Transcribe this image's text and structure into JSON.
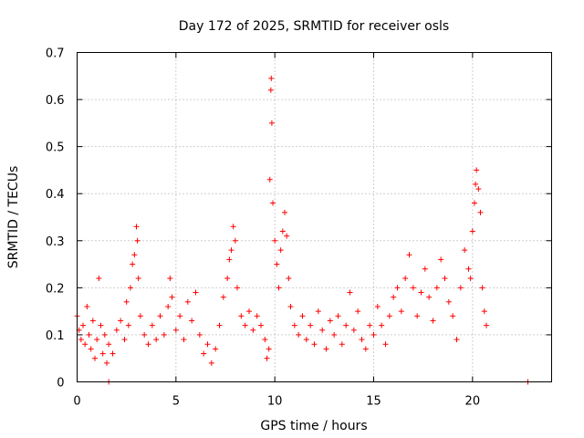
{
  "chart_data": {
    "type": "scatter",
    "title": "Day 172 of 2025, SRMTID for receiver osls",
    "xlabel": "GPS time / hours",
    "ylabel": "SRMTID / TECUs",
    "xlim": [
      0,
      24
    ],
    "ylim": [
      0,
      0.7
    ],
    "xticks": [
      0,
      5,
      10,
      15,
      20
    ],
    "xtick_labels": [
      "0",
      "5",
      "10",
      "15",
      "20"
    ],
    "yticks": [
      0,
      0.1,
      0.2,
      0.3,
      0.4,
      0.5,
      0.6,
      0.7
    ],
    "ytick_labels": [
      "0",
      "0.1",
      "0.2",
      "0.3",
      "0.4",
      "0.5",
      "0.6",
      "0.7"
    ],
    "grid": true,
    "marker": "+",
    "color": "#ff0000",
    "series": [
      {
        "name": "SRMTID osls",
        "points": [
          [
            0.0,
            0.14
          ],
          [
            0.1,
            0.11
          ],
          [
            0.2,
            0.09
          ],
          [
            0.3,
            0.12
          ],
          [
            0.4,
            0.08
          ],
          [
            0.5,
            0.16
          ],
          [
            0.6,
            0.1
          ],
          [
            0.7,
            0.07
          ],
          [
            0.8,
            0.13
          ],
          [
            0.9,
            0.05
          ],
          [
            1.0,
            0.09
          ],
          [
            1.1,
            0.22
          ],
          [
            1.2,
            0.12
          ],
          [
            1.3,
            0.06
          ],
          [
            1.4,
            0.1
          ],
          [
            1.5,
            0.04
          ],
          [
            1.6,
            0.08
          ],
          [
            1.8,
            0.06
          ],
          [
            2.0,
            0.11
          ],
          [
            2.2,
            0.13
          ],
          [
            2.4,
            0.09
          ],
          [
            2.5,
            0.17
          ],
          [
            2.6,
            0.12
          ],
          [
            2.7,
            0.2
          ],
          [
            2.8,
            0.25
          ],
          [
            2.9,
            0.27
          ],
          [
            3.0,
            0.33
          ],
          [
            3.05,
            0.3
          ],
          [
            3.1,
            0.22
          ],
          [
            3.2,
            0.14
          ],
          [
            3.4,
            0.1
          ],
          [
            3.6,
            0.08
          ],
          [
            3.8,
            0.12
          ],
          [
            4.0,
            0.09
          ],
          [
            4.2,
            0.14
          ],
          [
            4.4,
            0.1
          ],
          [
            4.6,
            0.16
          ],
          [
            4.7,
            0.22
          ],
          [
            4.8,
            0.18
          ],
          [
            5.0,
            0.11
          ],
          [
            5.2,
            0.14
          ],
          [
            5.4,
            0.09
          ],
          [
            5.6,
            0.17
          ],
          [
            5.8,
            0.13
          ],
          [
            6.0,
            0.19
          ],
          [
            6.2,
            0.1
          ],
          [
            6.4,
            0.06
          ],
          [
            6.6,
            0.08
          ],
          [
            6.8,
            0.04
          ],
          [
            7.0,
            0.07
          ],
          [
            7.2,
            0.12
          ],
          [
            7.4,
            0.18
          ],
          [
            7.6,
            0.22
          ],
          [
            7.7,
            0.26
          ],
          [
            7.8,
            0.28
          ],
          [
            7.9,
            0.33
          ],
          [
            8.0,
            0.3
          ],
          [
            8.1,
            0.2
          ],
          [
            8.3,
            0.14
          ],
          [
            8.5,
            0.12
          ],
          [
            8.7,
            0.15
          ],
          [
            8.9,
            0.11
          ],
          [
            9.1,
            0.14
          ],
          [
            9.3,
            0.12
          ],
          [
            9.5,
            0.09
          ],
          [
            9.6,
            0.05
          ],
          [
            9.7,
            0.07
          ],
          [
            9.75,
            0.43
          ],
          [
            9.8,
            0.62
          ],
          [
            9.82,
            0.645
          ],
          [
            9.85,
            0.55
          ],
          [
            9.9,
            0.38
          ],
          [
            10.0,
            0.3
          ],
          [
            10.1,
            0.25
          ],
          [
            10.2,
            0.2
          ],
          [
            10.3,
            0.28
          ],
          [
            10.4,
            0.32
          ],
          [
            10.5,
            0.36
          ],
          [
            10.6,
            0.31
          ],
          [
            10.7,
            0.22
          ],
          [
            10.8,
            0.16
          ],
          [
            11.0,
            0.12
          ],
          [
            11.2,
            0.1
          ],
          [
            11.4,
            0.14
          ],
          [
            11.6,
            0.09
          ],
          [
            11.8,
            0.12
          ],
          [
            12.0,
            0.08
          ],
          [
            12.2,
            0.15
          ],
          [
            12.4,
            0.11
          ],
          [
            12.6,
            0.07
          ],
          [
            12.8,
            0.13
          ],
          [
            13.0,
            0.1
          ],
          [
            13.2,
            0.14
          ],
          [
            13.4,
            0.08
          ],
          [
            13.6,
            0.12
          ],
          [
            13.8,
            0.19
          ],
          [
            14.0,
            0.11
          ],
          [
            14.2,
            0.15
          ],
          [
            14.4,
            0.09
          ],
          [
            14.6,
            0.07
          ],
          [
            14.8,
            0.12
          ],
          [
            15.0,
            0.1
          ],
          [
            15.2,
            0.16
          ],
          [
            15.4,
            0.12
          ],
          [
            15.6,
            0.08
          ],
          [
            15.8,
            0.14
          ],
          [
            16.0,
            0.18
          ],
          [
            16.2,
            0.2
          ],
          [
            16.4,
            0.15
          ],
          [
            16.6,
            0.22
          ],
          [
            16.8,
            0.27
          ],
          [
            17.0,
            0.2
          ],
          [
            17.2,
            0.14
          ],
          [
            17.4,
            0.19
          ],
          [
            17.6,
            0.24
          ],
          [
            17.8,
            0.18
          ],
          [
            18.0,
            0.13
          ],
          [
            18.2,
            0.2
          ],
          [
            18.4,
            0.26
          ],
          [
            18.6,
            0.22
          ],
          [
            18.8,
            0.17
          ],
          [
            19.0,
            0.14
          ],
          [
            19.2,
            0.09
          ],
          [
            19.4,
            0.2
          ],
          [
            19.6,
            0.28
          ],
          [
            19.8,
            0.24
          ],
          [
            19.9,
            0.22
          ],
          [
            20.0,
            0.32
          ],
          [
            20.1,
            0.38
          ],
          [
            20.15,
            0.42
          ],
          [
            20.2,
            0.45
          ],
          [
            20.3,
            0.41
          ],
          [
            20.4,
            0.36
          ],
          [
            20.5,
            0.2
          ],
          [
            20.6,
            0.15
          ],
          [
            20.7,
            0.12
          ],
          [
            1.6,
            0.0
          ],
          [
            22.8,
            0.0
          ]
        ]
      }
    ]
  }
}
